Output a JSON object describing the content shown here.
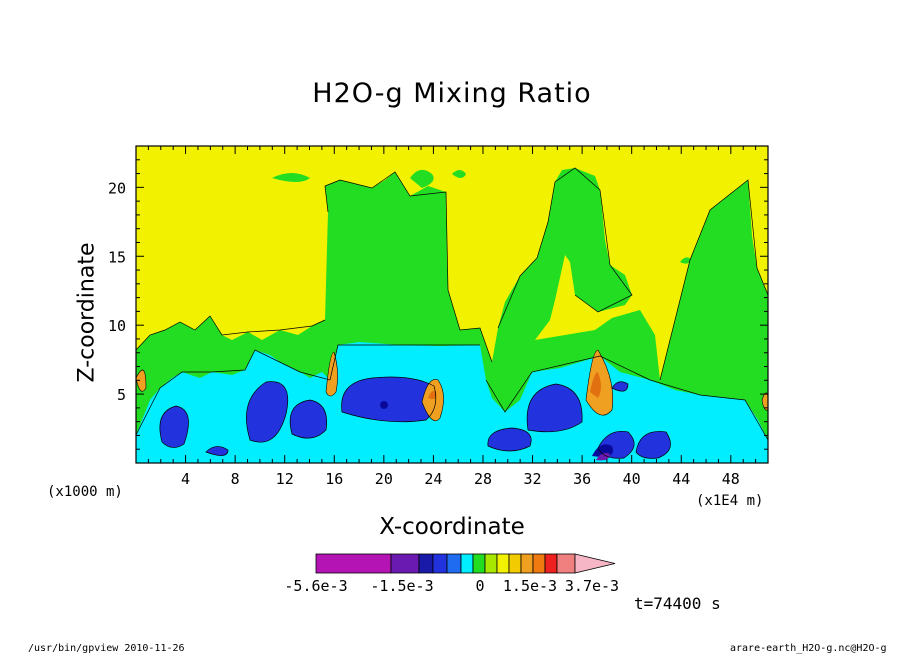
{
  "footer": {
    "left": "/usr/bin/gpview  2010-11-26",
    "right": "arare-earth_H2O-g.nc@H2O-g"
  },
  "time_label": "t=74400 s",
  "colors": {
    "yellow": "#f2f200",
    "green": "#22dd22",
    "cyan": "#00eeff",
    "blue": "#2233dd",
    "navy": "#0a0a9a",
    "purple": "#6a1ab0",
    "magenta": "#b414b4",
    "orange": "#f0a020",
    "darkorange": "#e07010",
    "red": "#ee2020",
    "pink": "#f6a6a6",
    "bg": "#ffffff"
  },
  "chart_data": {
    "type": "contour",
    "title": "H2O-g Mixing Ratio",
    "xlabel": "X-coordinate",
    "ylabel": "Z-coordinate",
    "x_unit_left": "(x1000 m)",
    "x_unit_right": "(x1E4 m)",
    "xlim": [
      0,
      51
    ],
    "ylim": [
      0,
      23
    ],
    "xticks": [
      4,
      8,
      12,
      16,
      20,
      24,
      28,
      32,
      36,
      40,
      44,
      48
    ],
    "yticks": [
      5,
      10,
      15,
      20
    ],
    "colorbar": {
      "levels_shown": [
        "-5.6e-3",
        "-1.5e-3",
        "0",
        "1.5e-3",
        "3.7e-3"
      ],
      "colors": [
        "#b414b4",
        "#6a1ab0",
        "#1a1aa8",
        "#2233dd",
        "#1f6cf0",
        "#00eeff",
        "#22dd22",
        "#a8e800",
        "#f2f200",
        "#f2cc00",
        "#f0a020",
        "#ee7a10",
        "#ee2020",
        "#f08080",
        "#f6b6c6"
      ]
    }
  }
}
